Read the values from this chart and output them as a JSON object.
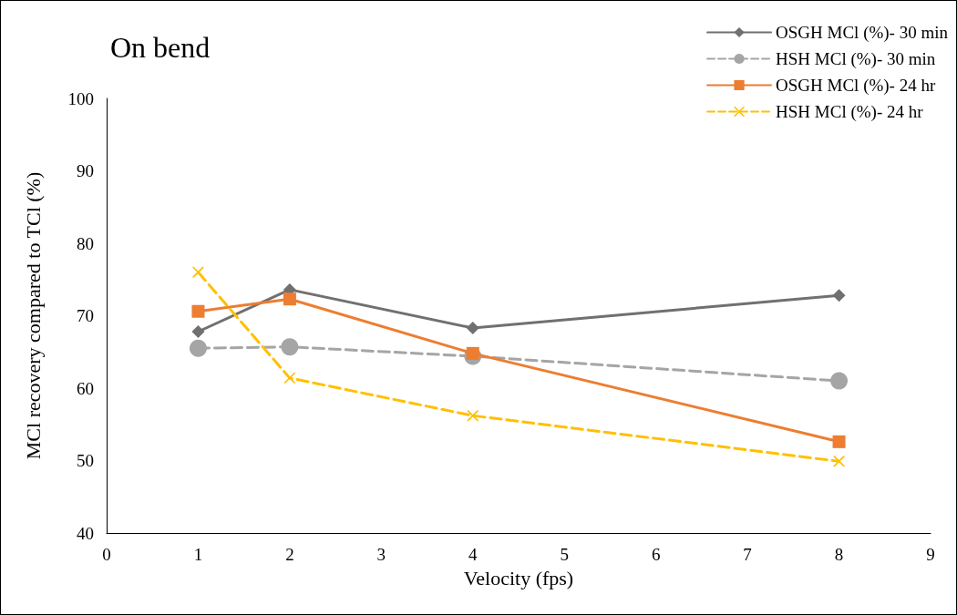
{
  "chart_data": {
    "type": "line",
    "title": "On bend",
    "xlabel": "Velocity (fps)",
    "ylabel": "MCl recovery compared to TCl (%)",
    "x": [
      1,
      2,
      4,
      8
    ],
    "series": [
      {
        "name": "OSGH MCl (%)- 30 min",
        "color": "#707070",
        "marker": "diamond",
        "line_style": "solid",
        "values": [
          67.8,
          73.6,
          68.3,
          72.8
        ]
      },
      {
        "name": "HSH MCl (%)- 30 min",
        "color": "#a5a5a5",
        "marker": "circle",
        "line_style": "dashed",
        "values": [
          65.5,
          65.7,
          64.4,
          61.0
        ]
      },
      {
        "name": "OSGH MCl (%)- 24 hr",
        "color": "#ed7d31",
        "marker": "square",
        "line_style": "solid",
        "values": [
          70.6,
          72.3,
          64.8,
          52.6
        ]
      },
      {
        "name": "HSH MCl (%)- 24 hr",
        "color": "#ffc000",
        "marker": "cross",
        "line_style": "dashed",
        "values": [
          76.0,
          61.4,
          56.2,
          49.9
        ]
      }
    ],
    "xlim": [
      0,
      9
    ],
    "xticks": [
      0,
      1,
      2,
      3,
      4,
      5,
      6,
      7,
      8,
      9
    ],
    "ylim": [
      40,
      100
    ],
    "yticks": [
      40,
      50,
      60,
      70,
      80,
      90,
      100
    ],
    "grid": false,
    "legend": "top right"
  }
}
